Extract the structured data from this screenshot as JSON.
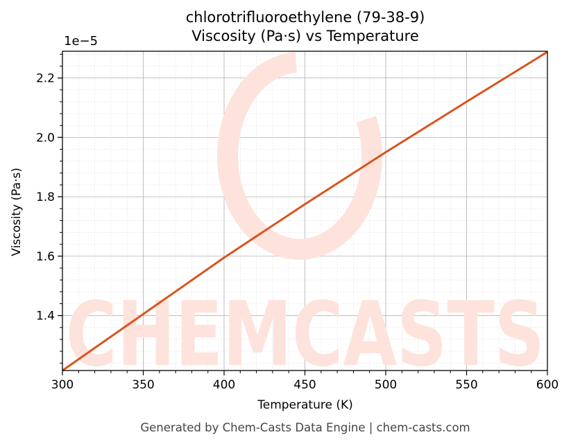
{
  "title_line1": "chlorotrifluoroethylene (79-38-9)",
  "title_line2": "Viscosity (Pa·s) vs Temperature",
  "footer": "Generated by Chem-Casts Data Engine | chem-casts.com",
  "watermark": "CHEMCASTS",
  "colors": {
    "line": "#d9531e",
    "watermark": "#fde3dc",
    "grid_major": "#b0b0b0",
    "grid_minor": "#e0e0e0"
  },
  "chart_data": {
    "type": "line",
    "title": "chlorotrifluoroethylene (79-38-9)\nViscosity (Pa·s) vs Temperature",
    "xlabel": "Temperature (K)",
    "ylabel": "Viscosity (Pa·s)",
    "y_offset_label": "1e−5",
    "xlim": [
      300,
      600
    ],
    "ylim": [
      1.215,
      2.29
    ],
    "y_scale_factor": 1e-05,
    "x_ticks": [
      300,
      350,
      400,
      450,
      500,
      550,
      600
    ],
    "x_tick_labels": [
      "300",
      "350",
      "400",
      "450",
      "500",
      "550",
      "600"
    ],
    "y_ticks": [
      1.4,
      1.6,
      1.8,
      2.0,
      2.2
    ],
    "y_tick_labels": [
      "1.4",
      "1.6",
      "1.8",
      "2.0",
      "2.2"
    ],
    "grid": true,
    "series": [
      {
        "x": [
          300,
          350,
          400,
          450,
          500,
          550,
          600
        ],
        "values": [
          1.215,
          1.405,
          1.595,
          1.775,
          1.95,
          2.12,
          2.288
        ]
      }
    ]
  }
}
